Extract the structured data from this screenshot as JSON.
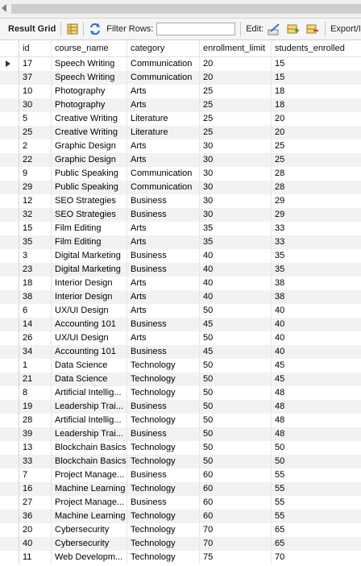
{
  "toolbar": {
    "result_grid_label": "Result Grid",
    "filter_rows_label": "Filter Rows:",
    "filter_rows_value": "",
    "edit_label": "Edit:",
    "export_label": "Export/I"
  },
  "grid": {
    "columns": [
      "id",
      "course_name",
      "category",
      "enrollment_limit",
      "students_enrolled"
    ],
    "rows": [
      [
        "17",
        "Speech Writing",
        "Communication",
        "20",
        "15"
      ],
      [
        "37",
        "Speech Writing",
        "Communication",
        "20",
        "15"
      ],
      [
        "10",
        "Photography",
        "Arts",
        "25",
        "18"
      ],
      [
        "30",
        "Photography",
        "Arts",
        "25",
        "18"
      ],
      [
        "5",
        "Creative Writing",
        "Literature",
        "25",
        "20"
      ],
      [
        "25",
        "Creative Writing",
        "Literature",
        "25",
        "20"
      ],
      [
        "2",
        "Graphic Design",
        "Arts",
        "30",
        "25"
      ],
      [
        "22",
        "Graphic Design",
        "Arts",
        "30",
        "25"
      ],
      [
        "9",
        "Public Speaking",
        "Communication",
        "30",
        "28"
      ],
      [
        "29",
        "Public Speaking",
        "Communication",
        "30",
        "28"
      ],
      [
        "12",
        "SEO Strategies",
        "Business",
        "30",
        "29"
      ],
      [
        "32",
        "SEO Strategies",
        "Business",
        "30",
        "29"
      ],
      [
        "15",
        "Film Editing",
        "Arts",
        "35",
        "33"
      ],
      [
        "35",
        "Film Editing",
        "Arts",
        "35",
        "33"
      ],
      [
        "3",
        "Digital Marketing",
        "Business",
        "40",
        "35"
      ],
      [
        "23",
        "Digital Marketing",
        "Business",
        "40",
        "35"
      ],
      [
        "18",
        "Interior Design",
        "Arts",
        "40",
        "38"
      ],
      [
        "38",
        "Interior Design",
        "Arts",
        "40",
        "38"
      ],
      [
        "6",
        "UX/UI Design",
        "Arts",
        "50",
        "40"
      ],
      [
        "14",
        "Accounting 101",
        "Business",
        "45",
        "40"
      ],
      [
        "26",
        "UX/UI Design",
        "Arts",
        "50",
        "40"
      ],
      [
        "34",
        "Accounting 101",
        "Business",
        "45",
        "40"
      ],
      [
        "1",
        "Data Science",
        "Technology",
        "50",
        "45"
      ],
      [
        "21",
        "Data Science",
        "Technology",
        "50",
        "45"
      ],
      [
        "8",
        "Artificial Intellig...",
        "Technology",
        "50",
        "48"
      ],
      [
        "19",
        "Leadership Trai...",
        "Business",
        "50",
        "48"
      ],
      [
        "28",
        "Artificial Intellig...",
        "Technology",
        "50",
        "48"
      ],
      [
        "39",
        "Leadership Trai...",
        "Business",
        "50",
        "48"
      ],
      [
        "13",
        "Blockchain Basics",
        "Technology",
        "50",
        "50"
      ],
      [
        "33",
        "Blockchain Basics",
        "Technology",
        "50",
        "50"
      ],
      [
        "7",
        "Project Manage...",
        "Business",
        "60",
        "55"
      ],
      [
        "16",
        "Machine Learning",
        "Technology",
        "60",
        "55"
      ],
      [
        "27",
        "Project Manage...",
        "Business",
        "60",
        "55"
      ],
      [
        "36",
        "Machine Learning",
        "Technology",
        "60",
        "55"
      ],
      [
        "20",
        "Cybersecurity",
        "Technology",
        "70",
        "65"
      ],
      [
        "40",
        "Cybersecurity",
        "Technology",
        "70",
        "65"
      ],
      [
        "11",
        "Web Developm...",
        "Technology",
        "75",
        "70"
      ]
    ]
  }
}
